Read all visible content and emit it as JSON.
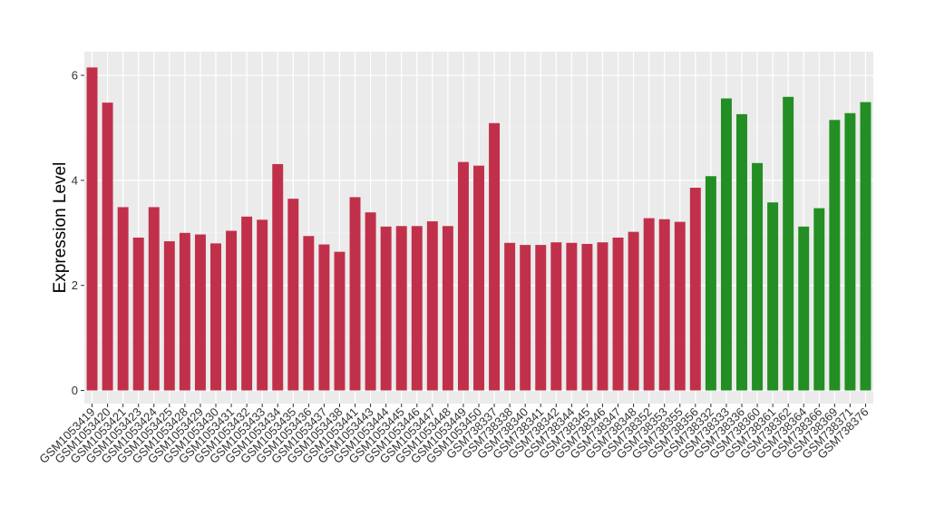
{
  "chart_data": {
    "type": "bar",
    "title": "",
    "xlabel": "",
    "ylabel": "Expression Level",
    "ylim": [
      -0.25,
      6.45
    ],
    "yticks": [
      0,
      2,
      4,
      6
    ],
    "grid": true,
    "legend": "none",
    "panel_background": "#EBEBEB",
    "categories": [
      "GSM1053419",
      "GSM1053420",
      "GSM1053421",
      "GSM1053423",
      "GSM1053424",
      "GSM1053425",
      "GSM1053428",
      "GSM1053429",
      "GSM1053430",
      "GSM1053431",
      "GSM1053432",
      "GSM1053433",
      "GSM1053434",
      "GSM1053435",
      "GSM1053436",
      "GSM1053437",
      "GSM1053438",
      "GSM1053441",
      "GSM1053443",
      "GSM1053444",
      "GSM1053445",
      "GSM1053446",
      "GSM1053447",
      "GSM1053448",
      "GSM1053449",
      "GSM1053450",
      "GSM738337",
      "GSM738338",
      "GSM738340",
      "GSM738341",
      "GSM738342",
      "GSM738344",
      "GSM738345",
      "GSM738346",
      "GSM738347",
      "GSM738348",
      "GSM738352",
      "GSM738353",
      "GSM738355",
      "GSM738356",
      "GSM738332",
      "GSM738333",
      "GSM738336",
      "GSM738360",
      "GSM738361",
      "GSM738362",
      "GSM738364",
      "GSM738366",
      "GSM738369",
      "GSM738371",
      "GSM738376"
    ],
    "values": [
      6.15,
      5.48,
      3.49,
      2.91,
      3.49,
      2.84,
      3.0,
      2.97,
      2.8,
      3.04,
      3.31,
      3.25,
      4.31,
      3.65,
      2.94,
      2.78,
      2.64,
      3.68,
      3.39,
      3.12,
      3.13,
      3.13,
      3.22,
      3.13,
      4.35,
      4.28,
      5.09,
      2.81,
      2.77,
      2.77,
      2.82,
      2.81,
      2.79,
      2.82,
      2.91,
      3.02,
      3.28,
      3.26,
      3.21,
      3.86,
      4.08,
      5.56,
      5.26,
      4.33,
      3.58,
      5.59,
      3.12,
      3.47,
      5.15,
      5.28,
      5.49
    ],
    "colors": [
      "#C1304A",
      "#C1304A",
      "#C1304A",
      "#C1304A",
      "#C1304A",
      "#C1304A",
      "#C1304A",
      "#C1304A",
      "#C1304A",
      "#C1304A",
      "#C1304A",
      "#C1304A",
      "#C1304A",
      "#C1304A",
      "#C1304A",
      "#C1304A",
      "#C1304A",
      "#C1304A",
      "#C1304A",
      "#C1304A",
      "#C1304A",
      "#C1304A",
      "#C1304A",
      "#C1304A",
      "#C1304A",
      "#C1304A",
      "#C1304A",
      "#C1304A",
      "#C1304A",
      "#C1304A",
      "#C1304A",
      "#C1304A",
      "#C1304A",
      "#C1304A",
      "#C1304A",
      "#C1304A",
      "#C1304A",
      "#C1304A",
      "#C1304A",
      "#C1304A",
      "#238E23",
      "#238E23",
      "#238E23",
      "#238E23",
      "#238E23",
      "#238E23",
      "#238E23",
      "#238E23",
      "#238E23",
      "#238E23",
      "#238E23"
    ]
  }
}
